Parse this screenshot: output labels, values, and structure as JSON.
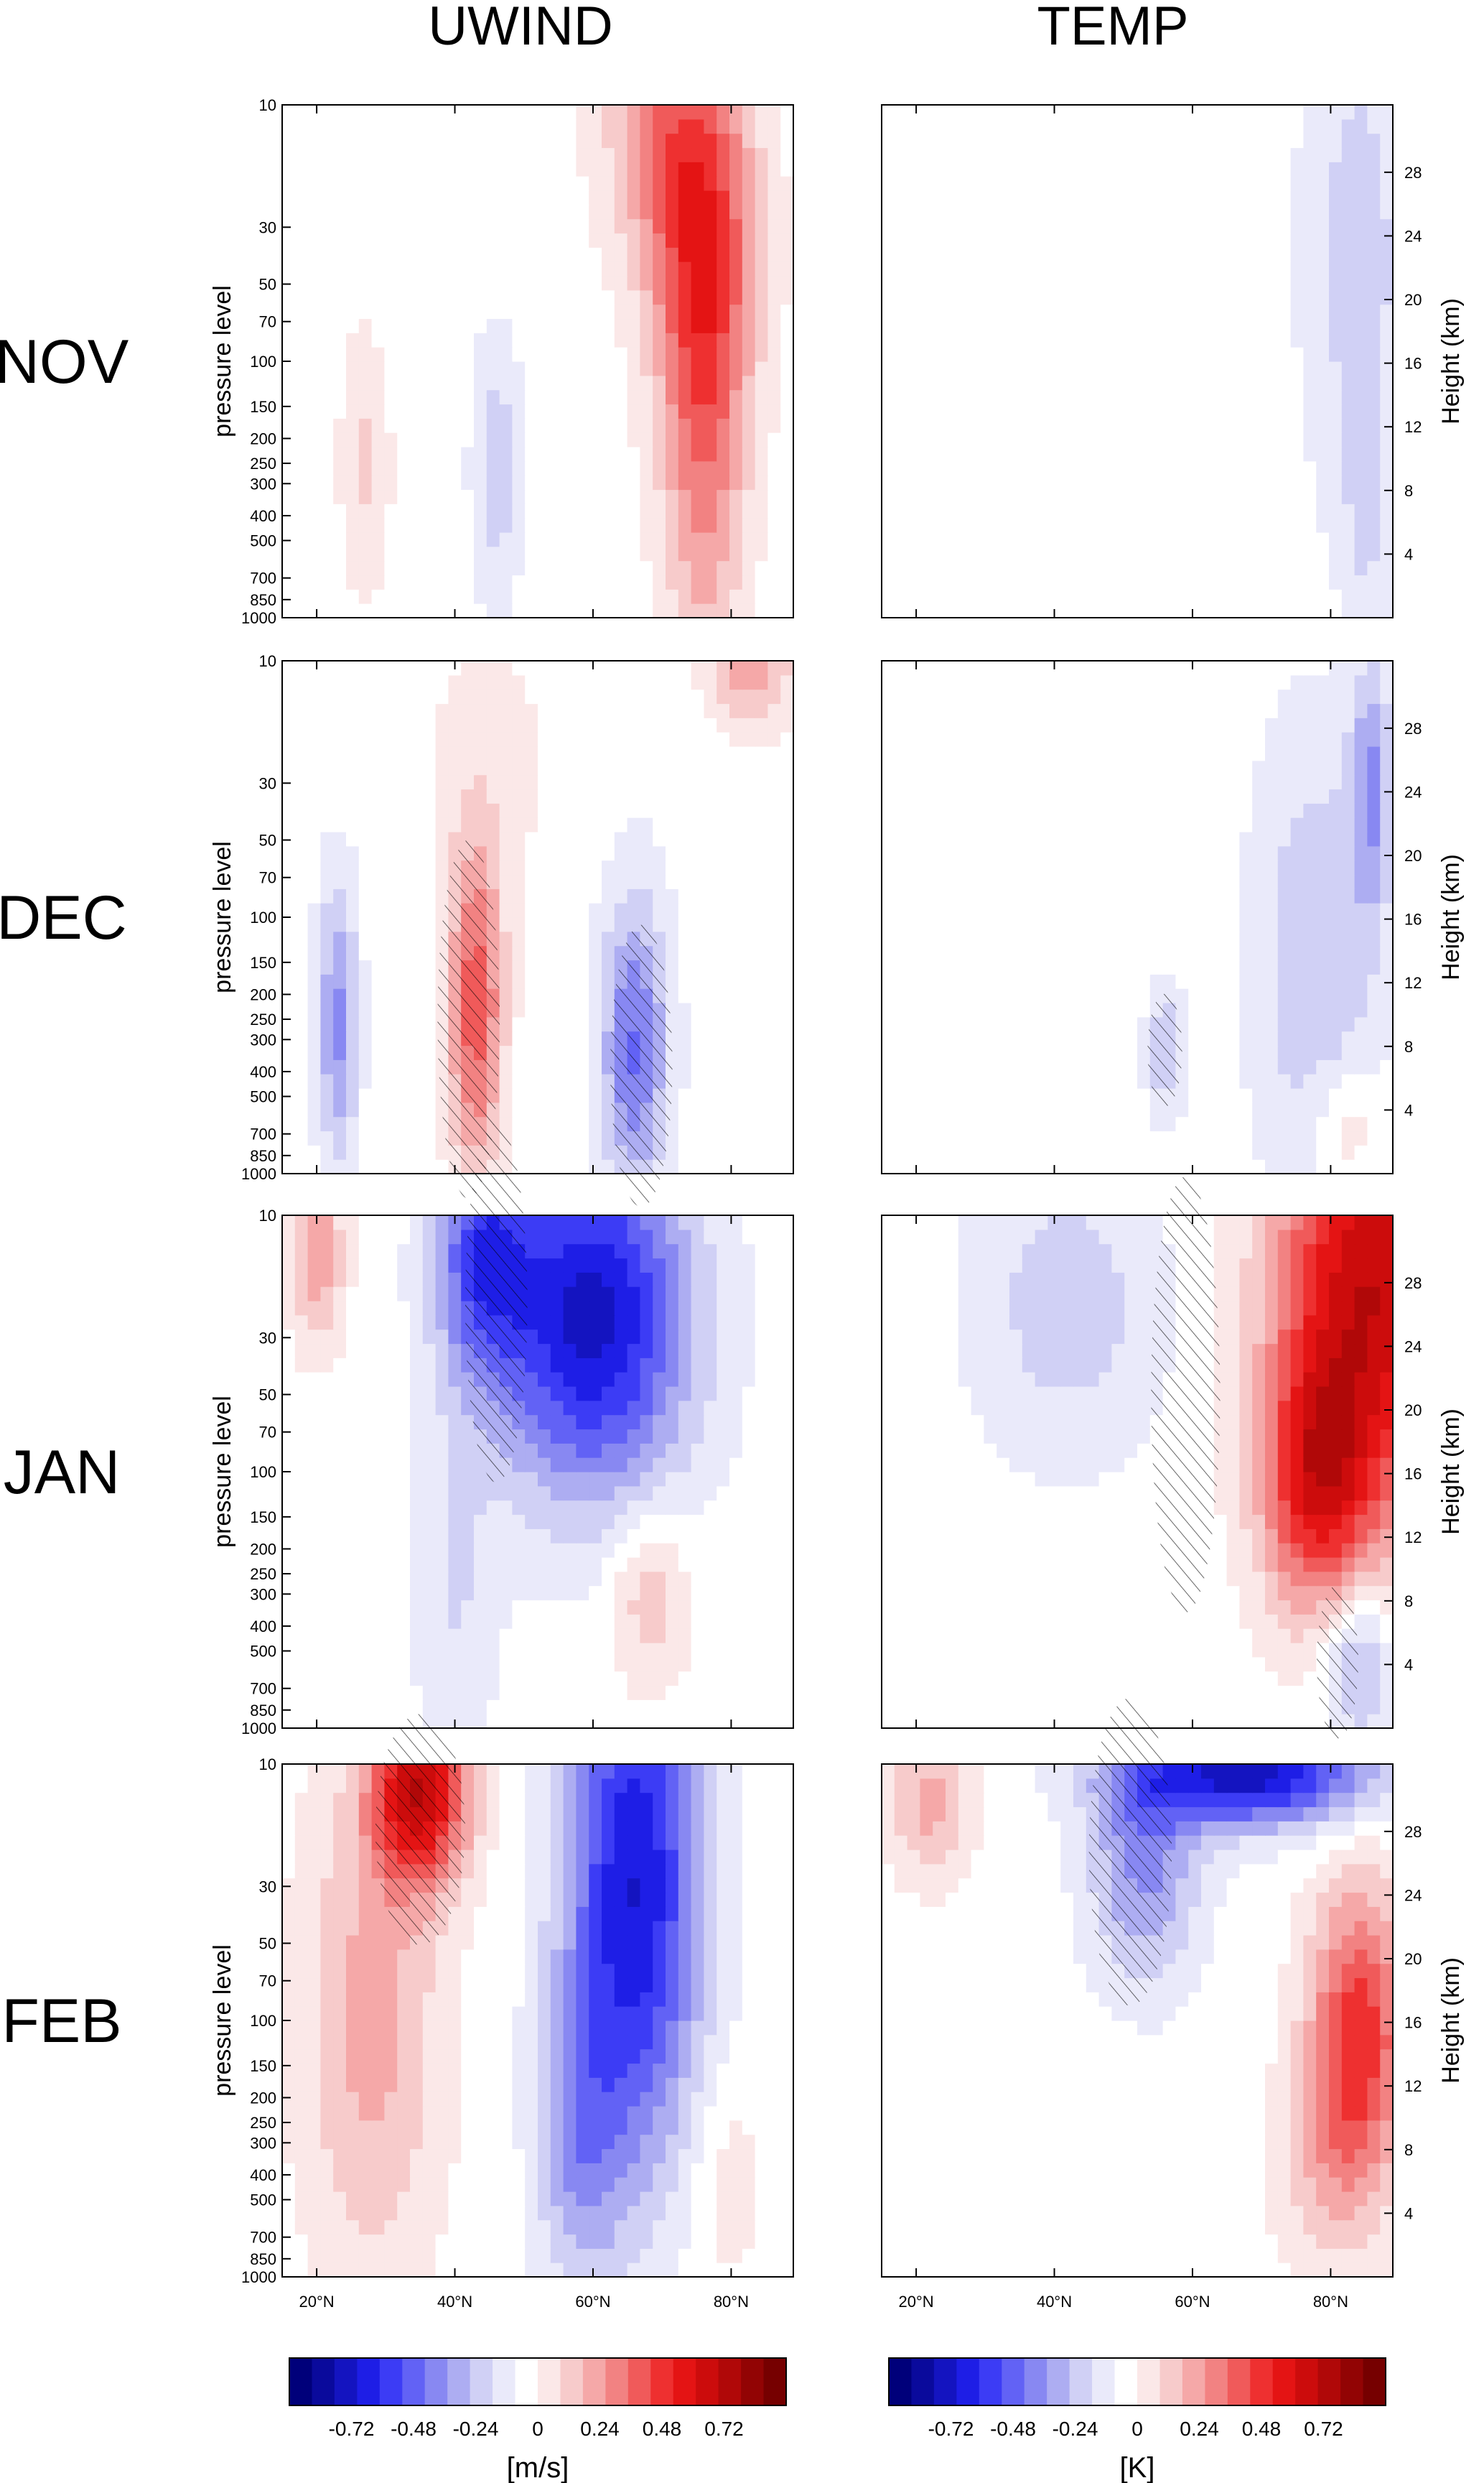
{
  "chart_data": {
    "type": "heatmap",
    "columns": [
      "UWIND",
      "TEMP"
    ],
    "rows": [
      "NOV",
      "DEC",
      "JAN",
      "FEB"
    ],
    "x_axis": {
      "range": [
        15,
        89
      ],
      "tick_values": [
        20,
        40,
        60,
        80
      ],
      "tick_labels": [
        "20°N",
        "40°N",
        "60°N",
        "80°N"
      ]
    },
    "y_left": {
      "label": "pressure level",
      "scale": "log",
      "range_hPa": [
        1000,
        10
      ],
      "tick_values": [
        10,
        30,
        50,
        70,
        100,
        150,
        200,
        250,
        300,
        400,
        500,
        700,
        850,
        1000
      ],
      "tick_labels": [
        "10",
        "30",
        "50",
        "70",
        "100",
        "150",
        "200",
        "250",
        "300",
        "400",
        "500",
        "700",
        "850",
        "1000"
      ]
    },
    "y_right": {
      "label": "Height (km)",
      "tick_values": [
        4,
        8,
        12,
        16,
        20,
        24,
        28
      ],
      "tick_labels": [
        "4",
        "8",
        "12",
        "16",
        "20",
        "24",
        "28"
      ]
    },
    "colorbars": [
      {
        "unit": "[m/s]",
        "min": -0.96,
        "max": 0.96,
        "tick_values": [
          -0.72,
          -0.48,
          -0.24,
          0,
          0.24,
          0.48,
          0.72
        ],
        "tick_labels": [
          "-0.72",
          "-0.48",
          "-0.24",
          "0",
          "0.24",
          "0.48",
          "0.72"
        ]
      },
      {
        "unit": "[K]",
        "min": -0.96,
        "max": 0.96,
        "tick_values": [
          -0.72,
          -0.48,
          -0.24,
          0,
          0.24,
          0.48,
          0.72
        ],
        "tick_labels": [
          "-0.72",
          "-0.48",
          "-0.24",
          "0",
          "0.24",
          "0.48",
          "0.72"
        ]
      }
    ],
    "color_levels": [
      "#00007a",
      "#0a0a9c",
      "#1414c0",
      "#1e1ee6",
      "#3c3cf5",
      "#6262f5",
      "#8888f2",
      "#adadf2",
      "#d0d0f5",
      "#eaeafa",
      "#ffffff",
      "#fbe8e8",
      "#f7cbcb",
      "#f5a8a8",
      "#f28282",
      "#f05a5a",
      "#ee3030",
      "#e41414",
      "#cc0c0c",
      "#b00808",
      "#920404",
      "#760000"
    ],
    "cell_units": "approximate fields; lat in degrees N, p in hPa, value in colorbar units",
    "panels": [
      {
        "row": "NOV",
        "var": "UWIND",
        "blobs": [
          {
            "lat": 76,
            "p": 35,
            "v": 0.6,
            "slat": 8,
            "slp": 0.7
          },
          {
            "lat": 76,
            "p": 250,
            "v": 0.42,
            "slat": 6,
            "slp": 0.9
          },
          {
            "lat": 70,
            "p": 12,
            "v": 0.35,
            "slat": 9,
            "slp": 0.5
          },
          {
            "lat": 27,
            "p": 250,
            "v": 0.2,
            "slat": 3.5,
            "slp": 0.5
          },
          {
            "lat": 46,
            "p": 260,
            "v": -0.26,
            "slat": 3.5,
            "slp": 0.5
          }
        ]
      },
      {
        "row": "NOV",
        "var": "TEMP",
        "blobs": [
          {
            "lat": 84,
            "p": 40,
            "v": -0.24,
            "slat": 8,
            "slp": 1.1
          },
          {
            "lat": 30,
            "p": 60,
            "v": 0.05,
            "slat": 15,
            "slp": 1.0
          },
          {
            "lat": 64,
            "p": 500,
            "v": 0.06,
            "slat": 10,
            "slp": 0.6
          },
          {
            "lat": 85,
            "p": 400,
            "v": -0.15,
            "slat": 3,
            "slp": 0.4
          }
        ]
      },
      {
        "row": "DEC",
        "var": "UWIND",
        "blobs": [
          {
            "lat": 43,
            "p": 230,
            "v": 0.62,
            "slat": 4,
            "slp": 0.65
          },
          {
            "lat": 23,
            "p": 260,
            "v": -0.45,
            "slat": 3,
            "slp": 0.55
          },
          {
            "lat": 66,
            "p": 320,
            "v": -0.55,
            "slat": 5,
            "slp": 0.6
          },
          {
            "lat": 83,
            "p": 10,
            "v": 0.4,
            "slat": 6,
            "slp": 0.25
          },
          {
            "lat": 45,
            "p": 25,
            "v": 0.1,
            "slat": 10,
            "slp": 0.6
          }
        ],
        "hatch": [
          {
            "lat": 42,
            "p": 250,
            "rlat": 4.5,
            "rp": 0.7
          },
          {
            "lat": 67,
            "p": 380,
            "rlat": 4.5,
            "rp": 0.55
          }
        ]
      },
      {
        "row": "DEC",
        "var": "TEMP",
        "blobs": [
          {
            "lat": 78,
            "p": 150,
            "v": -0.3,
            "slat": 9,
            "slp": 0.9
          },
          {
            "lat": 86,
            "p": 30,
            "v": -0.4,
            "slat": 3,
            "slp": 0.5
          },
          {
            "lat": 82,
            "p": 650,
            "v": 0.22,
            "slat": 5,
            "slp": 0.25
          },
          {
            "lat": 36,
            "p": 60,
            "v": 0.05,
            "slat": 16,
            "slp": 1.2
          },
          {
            "lat": 56,
            "p": 330,
            "v": -0.3,
            "slat": 3,
            "slp": 0.25
          }
        ],
        "hatch": [
          {
            "lat": 56,
            "p": 330,
            "rlat": 2.5,
            "rp": 0.22
          }
        ]
      },
      {
        "row": "JAN",
        "var": "UWIND",
        "blobs": [
          {
            "lat": 60,
            "p": 25,
            "v": -0.95,
            "slat": 14,
            "slp": 0.7
          },
          {
            "lat": 44,
            "p": 14,
            "v": -0.6,
            "slat": 7,
            "slp": 0.5
          },
          {
            "lat": 68,
            "p": 300,
            "v": 0.28,
            "slat": 6,
            "slp": 0.35
          },
          {
            "lat": 20,
            "p": 14,
            "v": 0.4,
            "slat": 4,
            "slp": 0.35
          },
          {
            "lat": 40,
            "p": 300,
            "v": -0.18,
            "slat": 6,
            "slp": 0.7
          }
        ],
        "hatch": [
          {
            "lat": 46,
            "p": 22,
            "rlat": 4.5,
            "rp": 0.7
          }
        ]
      },
      {
        "row": "JAN",
        "var": "TEMP",
        "blobs": [
          {
            "lat": 86,
            "p": 18,
            "v": 1.0,
            "slat": 14,
            "slp": 0.9
          },
          {
            "lat": 78,
            "p": 110,
            "v": 0.7,
            "slat": 8,
            "slp": 0.5
          },
          {
            "lat": 84,
            "p": 550,
            "v": -0.4,
            "slat": 5,
            "slp": 0.3
          },
          {
            "lat": 42,
            "p": 22,
            "v": -0.25,
            "slat": 14,
            "slp": 0.6
          }
        ],
        "hatch": [
          {
            "lat": 59,
            "p": 50,
            "rlat": 5,
            "rp": 0.85
          },
          {
            "lat": 81,
            "p": 550,
            "rlat": 3,
            "rp": 0.3
          }
        ]
      },
      {
        "row": "FEB",
        "var": "UWIND",
        "blobs": [
          {
            "lat": 66,
            "p": 30,
            "v": -0.9,
            "slat": 10,
            "slp": 1.1
          },
          {
            "lat": 35,
            "p": 13,
            "v": 0.95,
            "slat": 7,
            "slp": 0.35
          },
          {
            "lat": 28,
            "p": 100,
            "v": 0.35,
            "slat": 10,
            "slp": 1.0
          },
          {
            "lat": 58,
            "p": 300,
            "v": -0.35,
            "slat": 6,
            "slp": 0.6
          },
          {
            "lat": 79,
            "p": 420,
            "v": 0.15,
            "slat": 6,
            "slp": 0.45
          }
        ],
        "hatch": [
          {
            "lat": 35,
            "p": 18,
            "rlat": 6.5,
            "rp": 0.45
          }
        ]
      },
      {
        "row": "FEB",
        "var": "TEMP",
        "blobs": [
          {
            "lat": 68,
            "p": 11,
            "v": -0.95,
            "slat": 18,
            "slp": 0.2
          },
          {
            "lat": 53,
            "p": 25,
            "v": -0.45,
            "slat": 8,
            "slp": 0.45
          },
          {
            "lat": 84,
            "p": 120,
            "v": 0.75,
            "slat": 7,
            "slp": 0.6
          },
          {
            "lat": 22,
            "p": 14,
            "v": 0.35,
            "slat": 6,
            "slp": 0.3
          },
          {
            "lat": 78,
            "p": 350,
            "v": 0.2,
            "slat": 7,
            "slp": 0.4
          }
        ],
        "hatch": [
          {
            "lat": 51,
            "p": 22,
            "rlat": 6,
            "rp": 0.6
          }
        ]
      }
    ]
  }
}
